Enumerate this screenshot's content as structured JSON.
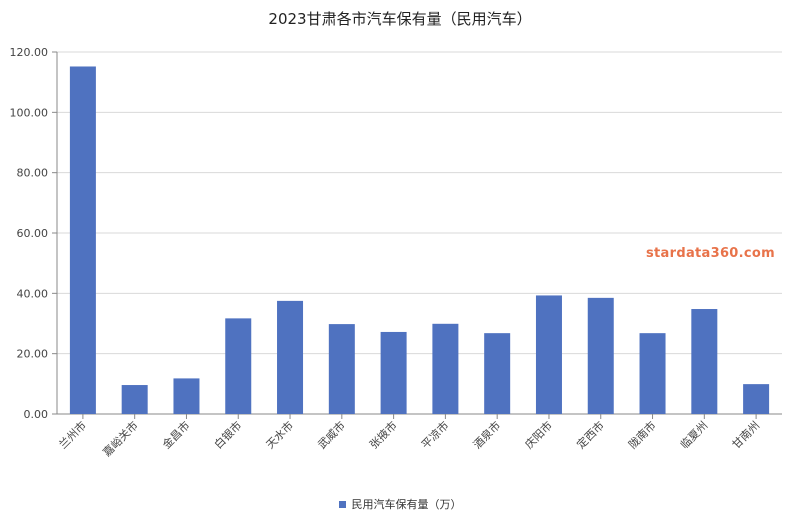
{
  "chart_data": {
    "type": "bar",
    "title": "2023甘肃各市汽车保有量（民用汽车）",
    "categories": [
      "兰州市",
      "嘉峪关市",
      "金昌市",
      "白银市",
      "天水市",
      "武威市",
      "张掖市",
      "平凉市",
      "酒泉市",
      "庆阳市",
      "定西市",
      "陇南市",
      "临夏州",
      "甘南州"
    ],
    "series": [
      {
        "name": "民用汽车保有量（万）",
        "values": [
          115.2,
          9.6,
          11.8,
          31.7,
          37.5,
          29.8,
          27.2,
          29.9,
          26.8,
          39.3,
          38.5,
          26.8,
          34.8,
          9.9
        ]
      }
    ],
    "ylim": [
      0,
      120
    ],
    "yticks": [
      "0.00",
      "20.00",
      "40.00",
      "60.00",
      "80.00",
      "100.00",
      "120.00"
    ],
    "grid": true,
    "legend": "bottom",
    "colors": {
      "bar": "#4f72c0",
      "grid": "#d9d9d9",
      "watermark": "#e8734a"
    }
  },
  "watermark": "stardata360.com"
}
